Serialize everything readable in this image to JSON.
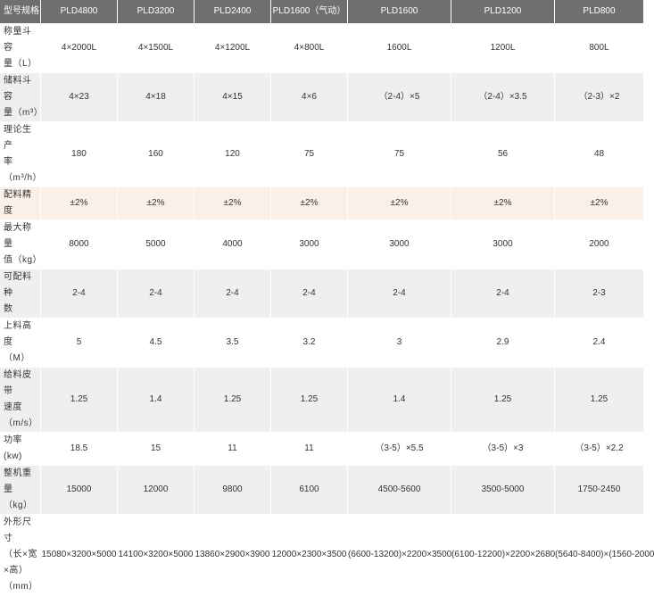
{
  "table": {
    "headers": [
      "型号规格",
      "PLD4800",
      "PLD3200",
      "PLD2400",
      "PLD1600（气动）",
      "PLD1600",
      "PLD1200",
      "PLD800"
    ],
    "rows": [
      {
        "label": [
          "称量斗容",
          "量（L）"
        ],
        "cells": [
          "4×2000L",
          "4×1500L",
          "4×1200L",
          "4×800L",
          "1600L",
          "1200L",
          "800L"
        ]
      },
      {
        "label": [
          "储料斗容",
          "量（m³）"
        ],
        "cells": [
          "4×23",
          "4×18",
          "4×15",
          "4×6",
          "（2-4）×5",
          "（2-4）×3.5",
          "（2-3）×2"
        ]
      },
      {
        "label": [
          "理论生产",
          "率",
          "（m³/h）"
        ],
        "cells": [
          "180",
          "160",
          "120",
          "75",
          "75",
          "56",
          "48"
        ]
      },
      {
        "label": [
          "配料精度"
        ],
        "cells": [
          "±2%",
          "±2%",
          "±2%",
          "±2%",
          "±2%",
          "±2%",
          "±2%"
        ]
      },
      {
        "label": [
          "最大称量",
          "值（kg）"
        ],
        "cells": [
          "8000",
          "5000",
          "4000",
          "3000",
          "3000",
          "3000",
          "2000"
        ]
      },
      {
        "label": [
          "可配料种",
          "数"
        ],
        "cells": [
          "2-4",
          "2-4",
          "2-4",
          "2-4",
          "2-4",
          "2-4",
          "2-3"
        ]
      },
      {
        "label": [
          "上料高度",
          "（M）"
        ],
        "cells": [
          "5",
          "4.5",
          "3.5",
          "3.2",
          "3",
          "2.9",
          "2.4"
        ]
      },
      {
        "label": [
          "给料皮带",
          "速度",
          "（m/s）"
        ],
        "cells": [
          "1.25",
          "1.4",
          "1.25",
          "1.25",
          "1.4",
          "1.25",
          "1.25"
        ]
      },
      {
        "label": [
          "功率(kw)"
        ],
        "cells": [
          "18.5",
          "15",
          "11",
          "11",
          "（3-5）×5.5",
          "（3-5）×3",
          "（3-5）×2.2"
        ]
      },
      {
        "label": [
          "整机重量",
          "（kg）"
        ],
        "cells": [
          "15000",
          "12000",
          "9800",
          "6100",
          "4500-5600",
          "3500-5000",
          "1750-2450"
        ]
      },
      {
        "label": [
          "外形尺寸",
          "（长×宽",
          "×高）",
          "（mm）"
        ],
        "cells": [
          "15080×3200×5000",
          "14100×3200×5000",
          "13860×2900×3900",
          "12000×2300×3500",
          "(6600-13200)×2200×3500",
          "(6100-12200)×2200×2680",
          "(5640-8400)×(1560-2000"
        ]
      }
    ]
  },
  "colors": {
    "header_bg": "#6f6f6f",
    "row_alt_bg": "#efefef",
    "highlight_bg": "#fbf0e8"
  }
}
